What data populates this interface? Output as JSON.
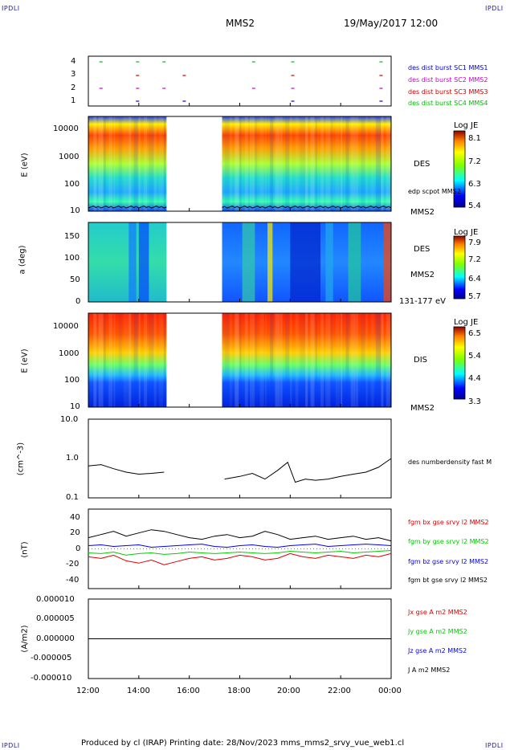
{
  "corners": {
    "tl": "IPDLI",
    "tr": "IPDLI",
    "bl": "IPDLI",
    "br": "IPDLI"
  },
  "header": {
    "title": "MMS2",
    "date": "19/May/2017 12:00"
  },
  "footer": {
    "text": "Produced by cl (IRAP)   Printing date: 28/Nov/2023   mms_mms2_srvy_vue_web1.cl"
  },
  "colors": {
    "sc1": "#0000cc",
    "sc2": "#cc00cc",
    "sc3": "#cc0000",
    "sc4": "#00bb00",
    "blue": "#0000ee",
    "green": "#00cc00",
    "red": "#dd0000",
    "black": "#000000"
  },
  "chart_data": [
    {
      "type": "scatter",
      "ylim": [
        1,
        4
      ],
      "yticks": [
        "4",
        "3",
        "2",
        "1"
      ],
      "legend": [
        {
          "text": "des dist burst SC1 MMS1",
          "color": "#0000cc"
        },
        {
          "text": "des dist burst SC2 MMS2",
          "color": "#cc00cc"
        },
        {
          "text": "des dist burst SC3 MMS3",
          "color": "#cc0000"
        },
        {
          "text": "des dist burst SC4 MMS4",
          "color": "#00bb00"
        }
      ],
      "x_hours": [
        0.5,
        1.95,
        3.0,
        3.8,
        6.55,
        8.1,
        11.6
      ]
    },
    {
      "type": "heatmap",
      "ylabel": "E (eV)",
      "yticks": [
        "10000",
        "1000",
        "100",
        "10"
      ],
      "colorbar": {
        "title": "Log JE",
        "ticks": [
          "8.1",
          "7.2",
          "6.3",
          "5.4"
        ]
      },
      "labels": [
        "DES",
        "edp scpot MMS2",
        "MMS2"
      ],
      "data_gap_hours": [
        3.1,
        5.3
      ]
    },
    {
      "type": "heatmap",
      "ylabel": "a (deg)",
      "yticks": [
        "150",
        "100",
        "50",
        "0"
      ],
      "colorbar": {
        "title": "Log JE",
        "ticks": [
          "7.9",
          "7.2",
          "6.4",
          "5.7"
        ]
      },
      "labels": [
        "DES",
        "MMS2",
        "131-177 eV"
      ],
      "data_gap_hours": [
        3.1,
        5.3
      ]
    },
    {
      "type": "heatmap",
      "ylabel": "E (eV)",
      "yticks": [
        "10000",
        "1000",
        "100",
        "10"
      ],
      "colorbar": {
        "title": "Log JE",
        "ticks": [
          "6.5",
          "5.4",
          "4.4",
          "3.3"
        ]
      },
      "labels": [
        "DIS",
        "MMS2"
      ],
      "data_gap_hours": [
        3.1,
        5.3
      ]
    },
    {
      "type": "line",
      "ylabel": "(cm^-3)",
      "yticks": [
        "10.0",
        "1.0",
        "0.1"
      ],
      "ylim": [
        0.1,
        10
      ],
      "scale": "log",
      "series": [
        {
          "name": "des numberdensity fast M",
          "color": "#000000"
        }
      ],
      "x_hours": [
        0,
        0.5,
        1,
        1.5,
        2,
        2.5,
        3,
        5.4,
        6,
        6.5,
        7,
        7.5,
        7.9,
        8.2,
        8.6,
        9,
        9.5,
        10,
        10.5,
        11,
        11.5,
        12
      ],
      "values": [
        0.65,
        0.7,
        0.55,
        0.45,
        0.4,
        0.42,
        0.45,
        0.3,
        0.35,
        0.42,
        0.3,
        0.5,
        0.8,
        0.25,
        0.3,
        0.28,
        0.3,
        0.35,
        0.4,
        0.45,
        0.6,
        1.0
      ]
    },
    {
      "type": "line",
      "ylabel": "(nT)",
      "yticks": [
        "40",
        "20",
        "0",
        "-20",
        "-40"
      ],
      "ylim": [
        -50,
        50
      ],
      "x_hours": [
        0,
        0.5,
        1,
        1.5,
        2,
        2.5,
        3,
        3.5,
        4,
        4.5,
        5,
        5.5,
        6,
        6.5,
        7,
        7.5,
        8,
        8.5,
        9,
        9.5,
        10,
        10.5,
        11,
        11.5,
        12
      ],
      "series": [
        {
          "name": "fgm bx gse srvy l2 MMS2",
          "color": "#dd0000",
          "values": [
            -10,
            -12,
            -8,
            -15,
            -18,
            -14,
            -20,
            -16,
            -12,
            -10,
            -14,
            -12,
            -8,
            -10,
            -14,
            -12,
            -6,
            -10,
            -12,
            -8,
            -10,
            -12,
            -8,
            -10,
            -6
          ]
        },
        {
          "name": "fgm by gse srvy l2 MMS2",
          "color": "#00cc00",
          "values": [
            -5,
            -6,
            -4,
            -8,
            -6,
            -5,
            -7,
            -6,
            -4,
            -5,
            -6,
            -5,
            -4,
            -5,
            -6,
            -5,
            -3,
            -4,
            -5,
            -4,
            -3,
            -5,
            -4,
            -3,
            -2
          ]
        },
        {
          "name": "fgm bz gse srvy l2 MMS2",
          "color": "#0000ee",
          "values": [
            4,
            5,
            3,
            4,
            5,
            2,
            3,
            4,
            5,
            6,
            3,
            2,
            4,
            5,
            3,
            2,
            4,
            5,
            6,
            3,
            4,
            5,
            6,
            5,
            4
          ]
        },
        {
          "name": "fgm bt gse srvy l2 MMS2",
          "color": "#000000",
          "values": [
            14,
            18,
            22,
            16,
            20,
            24,
            22,
            18,
            14,
            12,
            16,
            18,
            14,
            16,
            22,
            18,
            12,
            14,
            16,
            12,
            14,
            16,
            12,
            14,
            10
          ]
        }
      ]
    },
    {
      "type": "line",
      "ylabel": "(A/m2)",
      "yticks": [
        "0.000010",
        "0.000005",
        "0.000000",
        "-0.000005",
        "-0.000010"
      ],
      "ylim": [
        -1e-05,
        1e-05
      ],
      "series": [
        {
          "name": "Jx gse A m2 MMS2",
          "color": "#dd0000"
        },
        {
          "name": "Jy gse A m2 MMS2",
          "color": "#00cc00"
        },
        {
          "name": "Jz gse A m2 MMS2",
          "color": "#0000ee"
        },
        {
          "name": "J A m2 MMS2",
          "color": "#000000"
        }
      ]
    }
  ],
  "xaxis": {
    "ticks": [
      "12:00",
      "14:00",
      "16:00",
      "18:00",
      "20:00",
      "22:00",
      "00:00"
    ]
  }
}
